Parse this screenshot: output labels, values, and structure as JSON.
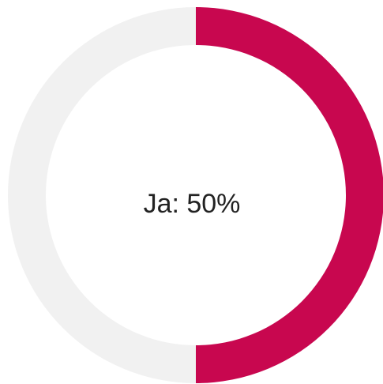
{
  "chart_data": {
    "type": "pie",
    "donut": true,
    "categories": [
      "Ja",
      null
    ],
    "values": [
      50,
      50
    ],
    "colors": [
      "#c8074f",
      "#f1f1f1"
    ],
    "center_label": "Ja: 50%"
  }
}
